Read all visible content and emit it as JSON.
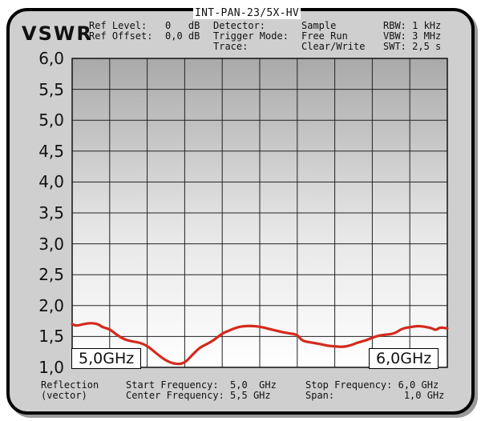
{
  "header": {
    "title": "INT-PAN-23/5X-HV",
    "mode": "VSWR",
    "ref_level_label": "Ref Level:",
    "ref_level_value": "0   dB",
    "ref_offset_label": "Ref Offset:",
    "ref_offset_value": "0,0 dB",
    "detector_label": "Detector:",
    "detector_value": "Sample",
    "trigger_label": "Trigger Mode:",
    "trigger_value": "Free Run",
    "trace_label": "Trace:",
    "trace_value": "Clear/Write",
    "rbw": "RBW: 1 kHz",
    "vbw": "VBW: 3 MHz",
    "swt": "SWT: 2,5 s"
  },
  "footer": {
    "measurement_line1": "Reflection",
    "measurement_line2": "(vector)",
    "start_freq": "Start Frequency:  5,0  GHz",
    "center_freq": "Center Frequency: 5,5 GHz",
    "stop_freq": "Stop Frequency: 6,0 GHz",
    "span": "Span:            1,0 GHz"
  },
  "chart_data": {
    "type": "line",
    "ylabel": "VSWR",
    "ylim": [
      1.0,
      6.0
    ],
    "yticks": [
      "6,0",
      "5,5",
      "5,0",
      "4,5",
      "4,0",
      "3,5",
      "3,0",
      "2,5",
      "2,0",
      "1,5",
      "1,0"
    ],
    "xlim": [
      5.0,
      6.0
    ],
    "x_start_label": "5,0GHz",
    "x_end_label": "6,0GHz",
    "grid": true,
    "line_color": "#d42a1e",
    "series": [
      {
        "x": [
          5.0,
          5.01,
          5.03,
          5.05,
          5.07,
          5.08,
          5.1,
          5.12,
          5.14,
          5.16,
          5.18,
          5.2,
          5.22,
          5.24,
          5.26,
          5.28,
          5.3,
          5.32,
          5.34,
          5.36,
          5.38,
          5.4,
          5.42,
          5.44,
          5.46,
          5.48,
          5.5,
          5.52,
          5.54,
          5.56,
          5.58,
          5.6,
          5.61,
          5.62,
          5.64,
          5.66,
          5.68,
          5.7,
          5.72,
          5.74,
          5.76,
          5.78,
          5.8,
          5.82,
          5.84,
          5.86,
          5.88,
          5.9,
          5.92,
          5.94,
          5.96,
          5.97,
          5.98,
          6.0
        ],
        "y": [
          1.7,
          1.67,
          1.7,
          1.72,
          1.7,
          1.65,
          1.62,
          1.52,
          1.45,
          1.42,
          1.4,
          1.35,
          1.25,
          1.15,
          1.08,
          1.05,
          1.07,
          1.2,
          1.32,
          1.38,
          1.45,
          1.55,
          1.6,
          1.65,
          1.67,
          1.67,
          1.66,
          1.63,
          1.6,
          1.57,
          1.55,
          1.53,
          1.45,
          1.42,
          1.4,
          1.38,
          1.35,
          1.34,
          1.33,
          1.35,
          1.4,
          1.43,
          1.48,
          1.52,
          1.53,
          1.55,
          1.63,
          1.65,
          1.67,
          1.66,
          1.63,
          1.6,
          1.65,
          1.63
        ]
      }
    ]
  }
}
